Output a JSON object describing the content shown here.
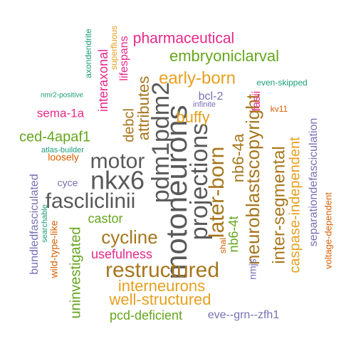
{
  "colors": {
    "background": "#ffffff",
    "gray": "#595959",
    "orange": "#e6a020",
    "brown": "#a6761d",
    "green": "#66a61e",
    "magenta": "#e7298a",
    "purple": "#7570b3",
    "teal": "#1b9e77",
    "rust": "#d95f02"
  },
  "words": [
    {
      "id": "pdm1pdm2",
      "text": "pdm1pdm2",
      "color": "gray"
    },
    {
      "id": "motoneurons",
      "text": "motoneurons",
      "color": "gray"
    },
    {
      "id": "projections",
      "text": "projections",
      "color": "gray"
    },
    {
      "id": "later-born",
      "text": "later-born",
      "color": "brown"
    },
    {
      "id": "nkx6",
      "text": "nkx6",
      "color": "gray"
    },
    {
      "id": "motor",
      "text": "motor",
      "color": "gray"
    },
    {
      "id": "fascliclinii",
      "text": "fascliclinii",
      "color": "gray"
    },
    {
      "id": "neuroblastscopyright",
      "text": "neuroblastscopyright",
      "color": "brown"
    },
    {
      "id": "restructured",
      "text": "restructured",
      "color": "brown"
    },
    {
      "id": "cycline",
      "text": "cycline",
      "color": "brown"
    },
    {
      "id": "inter-segmental",
      "text": "inter-segmental",
      "color": "brown"
    },
    {
      "id": "nb6-4a",
      "text": "nb6-4a",
      "color": "brown"
    },
    {
      "id": "interneurons",
      "text": "interneurons",
      "color": "orange"
    },
    {
      "id": "well-structured",
      "text": "well-structured",
      "color": "orange"
    },
    {
      "id": "caspase-independent",
      "text": "caspase-independent",
      "color": "orange"
    },
    {
      "id": "early-born",
      "text": "early-born",
      "color": "orange"
    },
    {
      "id": "attributes",
      "text": "attributes",
      "color": "brown"
    },
    {
      "id": "debcl",
      "text": "debcl",
      "color": "brown"
    },
    {
      "id": "buffy",
      "text": "buffy",
      "color": "orange"
    },
    {
      "id": "embryoniclarval",
      "text": "embryoniclarval",
      "color": "green"
    },
    {
      "id": "pharmaceutical",
      "text": "pharmaceutical",
      "color": "magenta"
    },
    {
      "id": "ced-4apaf1",
      "text": "ced-4apaf1",
      "color": "green"
    },
    {
      "id": "uninvestigated",
      "text": "uninvestigated",
      "color": "green"
    },
    {
      "id": "pcd-deficient",
      "text": "pcd-deficient",
      "color": "green"
    },
    {
      "id": "castor",
      "text": "castor",
      "color": "green"
    },
    {
      "id": "nb6-4t",
      "text": "nb6-4t",
      "color": "green"
    },
    {
      "id": "usefulness",
      "text": "usefulness",
      "color": "magenta"
    },
    {
      "id": "sema-1a",
      "text": "sema-1a",
      "color": "magenta"
    },
    {
      "id": "interaxonal",
      "text": "interaxonal",
      "color": "magenta"
    },
    {
      "id": "lifespans",
      "text": "lifespans",
      "color": "magenta"
    },
    {
      "id": "fasii",
      "text": "fasii",
      "color": "magenta"
    },
    {
      "id": "shal",
      "text": "shal",
      "color": "rust"
    },
    {
      "id": "separationdefasciculation",
      "text": "separationdefasciculation",
      "color": "purple"
    },
    {
      "id": "bundledfasciculated",
      "text": "bundledfasciculated",
      "color": "purple"
    },
    {
      "id": "eve--grn--zfh1",
      "text": "eve--grn--zfh1",
      "color": "purple"
    },
    {
      "id": "bcl-2",
      "text": "bcl-2",
      "color": "purple"
    },
    {
      "id": "nmjs",
      "text": "nmjs",
      "color": "purple"
    },
    {
      "id": "cyce",
      "text": "cyce",
      "color": "purple"
    },
    {
      "id": "infinite",
      "text": "infinite",
      "color": "purple"
    },
    {
      "id": "even-skipped",
      "text": "even-skipped",
      "color": "teal"
    },
    {
      "id": "axondendrite",
      "text": "axondendrite",
      "color": "teal"
    },
    {
      "id": "nmr2-positive",
      "text": "nmr2-positive",
      "color": "teal"
    },
    {
      "id": "atlas-builder",
      "text": "atlas-builder",
      "color": "teal"
    },
    {
      "id": "searchable",
      "text": "searchable",
      "color": "teal"
    },
    {
      "id": "superfluous",
      "text": "superfluous",
      "color": "orange"
    },
    {
      "id": "kv11",
      "text": "kv11",
      "color": "rust"
    },
    {
      "id": "loosely",
      "text": "loosely",
      "color": "rust"
    },
    {
      "id": "wild-type-like",
      "text": "wild-type-like",
      "color": "rust"
    },
    {
      "id": "voltage-dependent",
      "text": "voltage-dependent",
      "color": "rust"
    }
  ]
}
